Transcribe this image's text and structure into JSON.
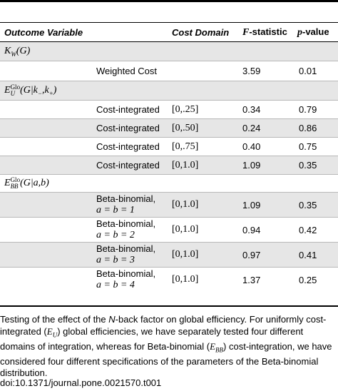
{
  "table": {
    "headers": {
      "outcome": "Outcome Variable",
      "cost_domain": "Cost Domain",
      "f_stat_symbol": "F",
      "f_stat_suffix": "-statistic",
      "p_value_symbol": "p",
      "p_value_suffix": "-value"
    },
    "groups": [
      {
        "label": "K_W(G)",
        "rows": [
          {
            "method": "Weighted Cost",
            "method_param": "",
            "domain": "",
            "f": "3.59",
            "p": "0.01"
          }
        ]
      },
      {
        "label": "E_U^Glo(G|k−,k+)",
        "rows": [
          {
            "method": "Cost-integrated",
            "method_param": "",
            "domain": "[0,.25]",
            "f": "0.34",
            "p": "0.79"
          },
          {
            "method": "Cost-integrated",
            "method_param": "",
            "domain": "[0,.50]",
            "f": "0.24",
            "p": "0.86"
          },
          {
            "method": "Cost-integrated",
            "method_param": "",
            "domain": "[0,.75]",
            "f": "0.40",
            "p": "0.75"
          },
          {
            "method": "Cost-integrated",
            "method_param": "",
            "domain": "[0,1.0]",
            "f": "1.09",
            "p": "0.35"
          }
        ]
      },
      {
        "label": "E_BB^Glo(G|a,b)",
        "rows": [
          {
            "method": "Beta-binomial,",
            "method_param": "a = b = 1",
            "domain": "[0,1.0]",
            "f": "1.09",
            "p": "0.35"
          },
          {
            "method": "Beta-binomial,",
            "method_param": "a = b = 2",
            "domain": "[0,1.0]",
            "f": "0.94",
            "p": "0.42"
          },
          {
            "method": "Beta-binomial,",
            "method_param": "a = b = 3",
            "domain": "[0,1.0]",
            "f": "0.97",
            "p": "0.41"
          },
          {
            "method": "Beta-binomial,",
            "method_param": "a = b = 4",
            "domain": "[0,1.0]",
            "f": "1.37",
            "p": "0.25"
          }
        ]
      }
    ]
  },
  "caption": {
    "t1": "Testing of the effect of the ",
    "n": "N",
    "t2": "-back factor on global efficiency. For uniformly cost-integrated (",
    "eu": "E",
    "eu_sub": "U",
    "t3": ") global efficiencies, we have separately tested four different domains of integration, whereas for Beta-binomial (",
    "ebb": "E",
    "ebb_sub": "BB",
    "t4": ") cost-integration, we have considered four different specifications of the parameters of the Beta-binomial distribution."
  },
  "doi": "doi:10.1371/journal.pone.0021570.t001"
}
